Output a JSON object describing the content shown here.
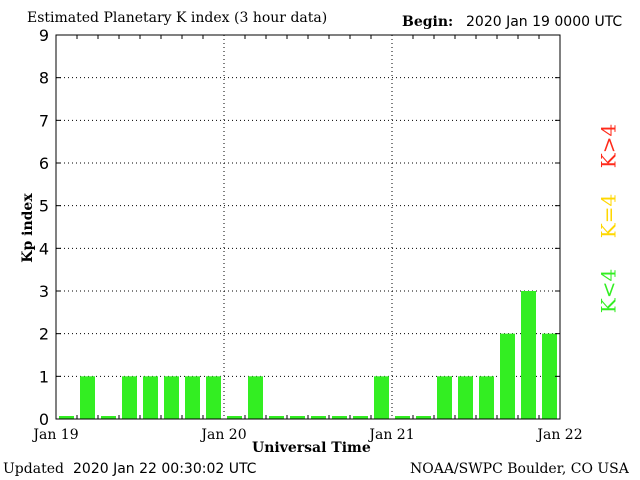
{
  "header": {
    "title": "Estimated Planetary K index (3 hour data)",
    "begin_label": "Begin:",
    "begin_value": "2020 Jan 19 0000 UTC"
  },
  "footer": {
    "updated_label": "Updated",
    "updated_value": "2020 Jan 22 00:30:02 UTC",
    "credit": "NOAA/SWPC Boulder, CO USA"
  },
  "legend": [
    {
      "label": "K>4",
      "color": "#ff2a1a"
    },
    {
      "label": "K=4",
      "color": "#ffd700"
    },
    {
      "label": "K<4",
      "color": "#33ee22"
    }
  ],
  "chart_data": {
    "type": "bar",
    "title": "Estimated Planetary K index (3 hour data)",
    "xlabel": "Universal Time",
    "ylabel": "Kp index",
    "ylim": [
      0,
      9
    ],
    "yticks": [
      "0",
      "1",
      "2",
      "3",
      "4",
      "5",
      "6",
      "7",
      "8",
      "9"
    ],
    "xticks": [
      "Jan 19",
      "Jan 20",
      "Jan 21",
      "Jan 22"
    ],
    "grid": true,
    "bar_color": "#33ee22",
    "values": [
      0,
      1,
      0,
      1,
      1,
      1,
      1,
      1,
      0,
      1,
      0,
      0,
      0,
      0,
      0,
      1,
      0,
      0,
      1,
      1,
      1,
      2,
      3,
      2
    ]
  }
}
